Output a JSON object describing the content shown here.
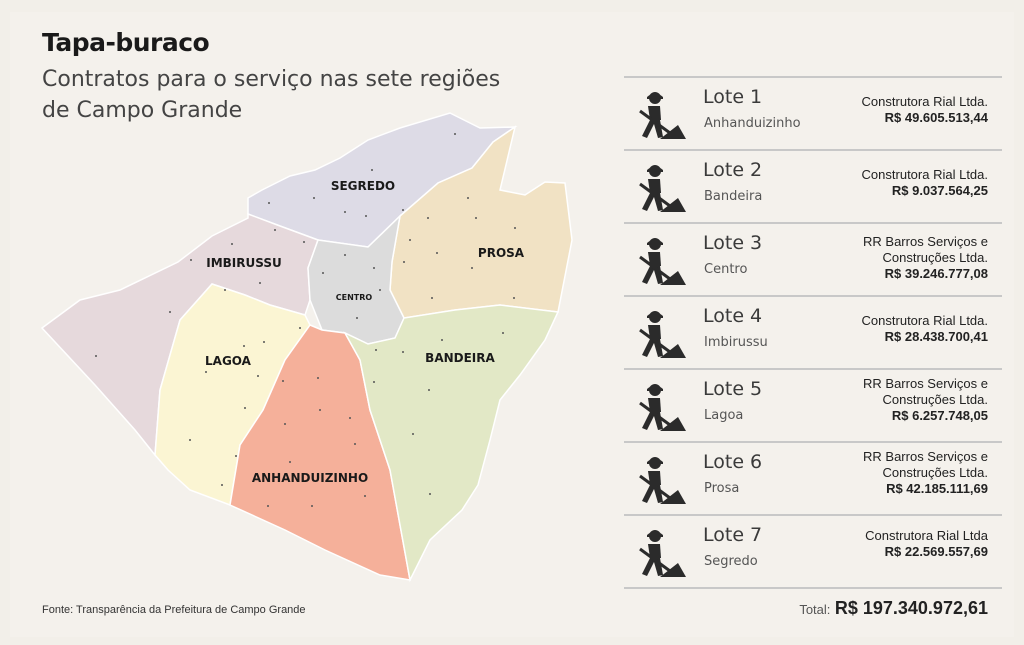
{
  "header": {
    "title": "Tapa-buraco",
    "subtitle": "Contratos para o serviço nas sete regiões de Campo Grande"
  },
  "map": {
    "regions": [
      {
        "name": "SEGREDO",
        "color": "#dddbe6"
      },
      {
        "name": "IMBIRUSSU",
        "color": "#e6d9dc"
      },
      {
        "name": "PROSA",
        "color": "#f1e2c4"
      },
      {
        "name": "CENTRO",
        "color": "#dcdcdc"
      },
      {
        "name": "LAGOA",
        "color": "#fbf5d3"
      },
      {
        "name": "BANDEIRA",
        "color": "#e2e8c6"
      },
      {
        "name": "ANHANDUIZINHO",
        "color": "#f5b09a"
      }
    ]
  },
  "lots": [
    {
      "name": "Lote 1",
      "region": "Anhanduizinho",
      "company": "Construtora Rial Ltda.",
      "amount": "R$ 49.605.513,44"
    },
    {
      "name": "Lote 2",
      "region": "Bandeira",
      "company": "Construtora Rial Ltda.",
      "amount": "R$ 9.037.564,25"
    },
    {
      "name": "Lote 3",
      "region": "Centro",
      "company": "RR Barros Serviços e Construções Ltda.",
      "amount": "R$ 39.246.777,08"
    },
    {
      "name": "Lote 4",
      "region": "Imbirussu",
      "company": "Construtora Rial Ltda.",
      "amount": "R$ 28.438.700,41"
    },
    {
      "name": "Lote 5",
      "region": "Lagoa",
      "company": "RR Barros Serviços e Construções Ltda.",
      "amount": "R$ 6.257.748,05"
    },
    {
      "name": "Lote 6",
      "region": "Prosa",
      "company": "RR Barros Serviços e Construções Ltda.",
      "amount": "R$ 42.185.111,69"
    },
    {
      "name": "Lote 7",
      "region": "Segredo",
      "company": "Construtora Rial Ltda",
      "amount": "R$ 22.569.557,69"
    }
  ],
  "total": {
    "label": "Total:",
    "value": "R$ 197.340.972,61"
  },
  "source": "Fonte: Transparência da Prefeitura de Campo Grande",
  "icon": "road-worker-shovel-icon"
}
